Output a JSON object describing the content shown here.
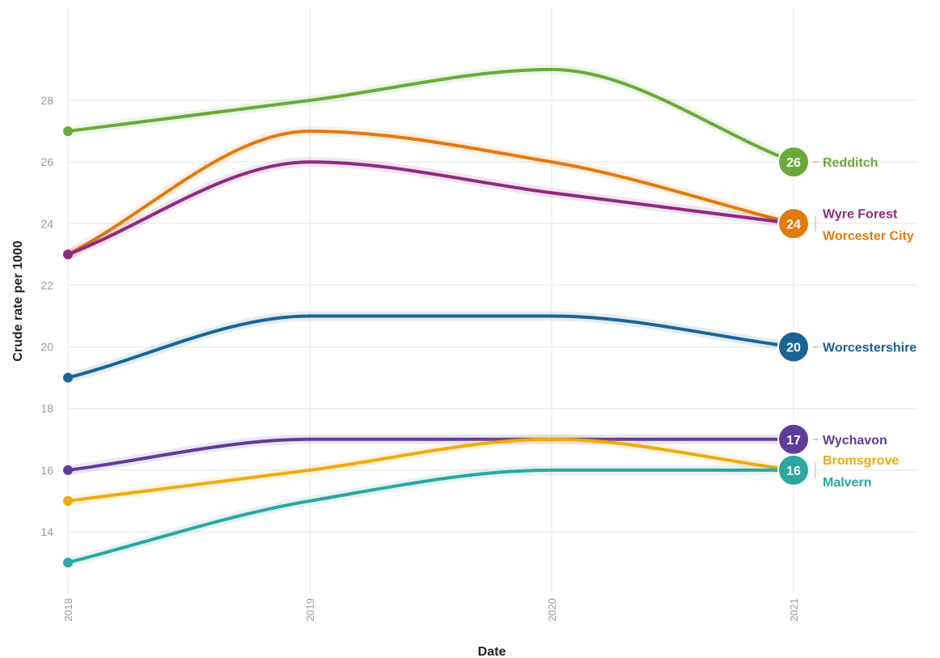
{
  "chart_data": {
    "type": "line",
    "xlabel": "Date",
    "ylabel": "Crude rate per 1000",
    "x": [
      "2018",
      "2019",
      "2020",
      "2021"
    ],
    "y_ticks": [
      14,
      16,
      18,
      20,
      22,
      24,
      26,
      28
    ],
    "ylim": [
      12.7,
      29.6
    ],
    "grid": true,
    "legend": "direct labels at right end of lines",
    "series": [
      {
        "name": "Redditch",
        "color": "#6aaa3a",
        "values": [
          27,
          28,
          29,
          26
        ],
        "end_label": "26"
      },
      {
        "name": "Worcester City",
        "color": "#e07b10",
        "values": [
          23,
          27,
          26,
          24
        ],
        "end_label": "24"
      },
      {
        "name": "Wyre Forest",
        "color": "#8e2a7e",
        "values": [
          23,
          26,
          25,
          24
        ],
        "end_label": "24"
      },
      {
        "name": "Worcestershire",
        "color": "#1a6496",
        "values": [
          19,
          21,
          21,
          20
        ],
        "end_label": "20"
      },
      {
        "name": "Wychavon",
        "color": "#5e3c99",
        "values": [
          16,
          17,
          17,
          17
        ],
        "end_label": "17"
      },
      {
        "name": "Bromsgrove",
        "color": "#f0aa10",
        "values": [
          15,
          16,
          17,
          16
        ],
        "end_label": "16"
      },
      {
        "name": "Malvern",
        "color": "#2aa7a0",
        "values": [
          13,
          15,
          16,
          16
        ],
        "end_label": "16"
      }
    ],
    "end_markers": [
      {
        "value_label": "26",
        "color": "#6aaa3a",
        "y": 26,
        "labels": [
          "Redditch"
        ]
      },
      {
        "value_label": "24",
        "color": "#e07b10",
        "y": 24,
        "labels": [
          "Wyre Forest",
          "Worcester City"
        ]
      },
      {
        "value_label": "20",
        "color": "#1a6496",
        "y": 20,
        "labels": [
          "Worcestershire"
        ]
      },
      {
        "value_label": "17",
        "color": "#5e3c99",
        "y": 17,
        "labels": [
          "Wychavon"
        ]
      },
      {
        "value_label": "16",
        "color": "#2aa7a0",
        "y": 16,
        "labels": [
          "Bromsgrove",
          "Malvern"
        ]
      }
    ]
  }
}
